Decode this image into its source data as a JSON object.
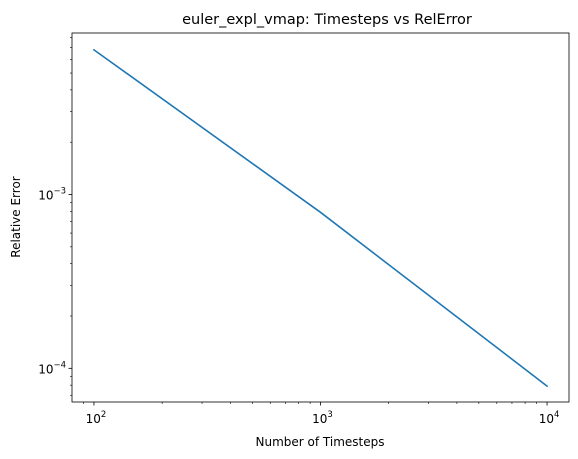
{
  "chart_data": {
    "type": "line",
    "title": "euler_expl_vmap: Timesteps vs RelError",
    "xlabel": "Number of Timesteps",
    "ylabel": "Relative Error",
    "xscale": "log",
    "yscale": "log",
    "xlim": [
      80,
      12500
    ],
    "ylim": [
      6.4e-05,
      0.0085
    ],
    "grid": false,
    "series": [
      {
        "x": [
          100,
          1000,
          10000
        ],
        "y": [
          0.0068,
          0.00079,
          7.9e-05
        ],
        "color": "#1f77b4"
      }
    ],
    "x_ticks": [
      {
        "value": 100,
        "base": "10",
        "exp": "2"
      },
      {
        "value": 1000,
        "base": "10",
        "exp": "3"
      },
      {
        "value": 10000,
        "base": "10",
        "exp": "4"
      }
    ],
    "y_ticks": [
      {
        "value": 0.0001,
        "base": "10",
        "exp": "−4"
      },
      {
        "value": 0.001,
        "base": "10",
        "exp": "−3"
      }
    ]
  }
}
